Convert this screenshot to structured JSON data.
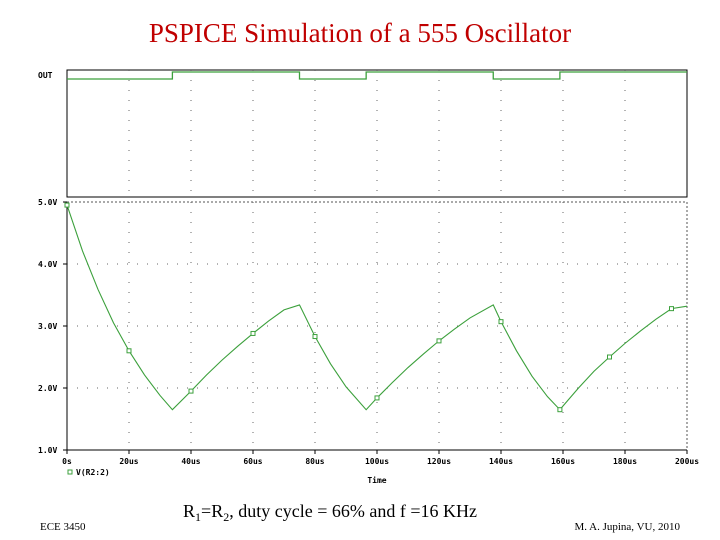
{
  "title": "PSPICE Simulation of a 555 Oscillator",
  "caption": {
    "parts": [
      "R",
      "1",
      "=R",
      "2",
      ", duty cycle = 66% and f =16 KHz"
    ]
  },
  "footer": {
    "left": "ECE 3450",
    "right": "M. A. Jupina, VU, 2010"
  },
  "chart_data": [
    {
      "type": "digital",
      "label": "OUT",
      "color": "#3ca03c",
      "x": [
        0,
        34,
        34,
        75,
        75,
        96.5,
        96.5,
        137.5,
        137.5,
        159,
        159,
        200
      ],
      "values": [
        0,
        0,
        1,
        1,
        0,
        0,
        1,
        1,
        0,
        0,
        1,
        1
      ],
      "xlim": [
        0,
        200
      ],
      "xticks": [
        0,
        20,
        40,
        60,
        80,
        100,
        120,
        140,
        160,
        180,
        200
      ],
      "grid": true
    },
    {
      "type": "line",
      "xlabel": "Time",
      "color": "#3ca03c",
      "x": [
        0,
        5,
        10,
        15,
        20,
        25,
        30,
        34,
        40,
        45,
        50,
        55,
        60,
        65,
        70,
        75,
        80,
        85,
        90,
        96.5,
        100,
        105,
        110,
        115,
        120,
        125,
        130,
        137.5,
        140,
        145,
        150,
        155,
        159,
        160,
        165,
        170,
        175,
        180,
        185,
        190,
        195,
        200
      ],
      "series": [
        {
          "name": "V(R2:2)",
          "color": "#3ca03c",
          "values": [
            4.95,
            4.21,
            3.59,
            3.05,
            2.6,
            2.21,
            1.88,
            1.65,
            1.95,
            2.21,
            2.45,
            2.67,
            2.88,
            3.08,
            3.26,
            3.34,
            2.83,
            2.39,
            2.02,
            1.65,
            1.84,
            2.09,
            2.33,
            2.55,
            2.76,
            2.95,
            3.13,
            3.34,
            3.07,
            2.6,
            2.19,
            1.86,
            1.65,
            1.71,
            2.0,
            2.27,
            2.5,
            2.72,
            2.92,
            3.11,
            3.28,
            3.32
          ]
        }
      ],
      "xlim": [
        0,
        200
      ],
      "xticks": [
        {
          "value": 0,
          "label": "0s"
        },
        {
          "value": 20,
          "label": "20us"
        },
        {
          "value": 40,
          "label": "40us"
        },
        {
          "value": 60,
          "label": "60us"
        },
        {
          "value": 80,
          "label": "80us"
        },
        {
          "value": 100,
          "label": "100us"
        },
        {
          "value": 120,
          "label": "120us"
        },
        {
          "value": 140,
          "label": "140us"
        },
        {
          "value": 160,
          "label": "160us"
        },
        {
          "value": 180,
          "label": "180us"
        },
        {
          "value": 200,
          "label": "200us"
        }
      ],
      "ylim": [
        1,
        5
      ],
      "yticks": [
        {
          "value": 1,
          "label": "1.0V"
        },
        {
          "value": 2,
          "label": "2.0V"
        },
        {
          "value": 3,
          "label": "3.0V"
        },
        {
          "value": 4,
          "label": "4.0V"
        },
        {
          "value": 5,
          "label": "5.0V"
        }
      ],
      "grid": true,
      "legend": "bottom-left"
    }
  ]
}
